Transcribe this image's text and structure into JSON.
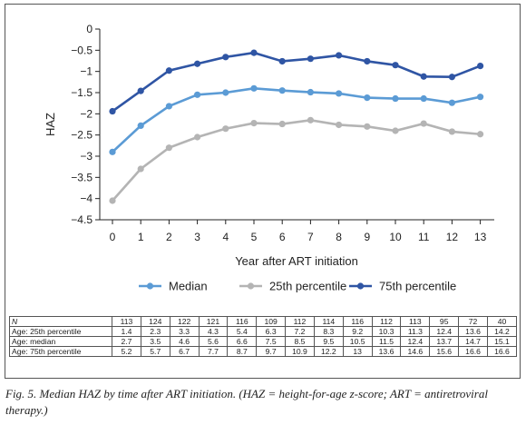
{
  "chart_data": {
    "type": "line",
    "title": "",
    "xlabel": "Year after ART initiation",
    "ylabel": "HAZ",
    "x": [
      0,
      1,
      2,
      3,
      4,
      5,
      6,
      7,
      8,
      9,
      10,
      11,
      12,
      13
    ],
    "x_ticks": [
      "0",
      "1",
      "2",
      "3",
      "4",
      "5",
      "6",
      "7",
      "8",
      "9",
      "10",
      "11",
      "12",
      "13"
    ],
    "ylim": [
      -4.5,
      0
    ],
    "y_ticks": [
      "0",
      "−0.5",
      "−1",
      "−1.5",
      "−2",
      "−2.5",
      "−3",
      "−3.5",
      "−4",
      "−4.5"
    ],
    "grid": false,
    "legend_position": "bottom",
    "series": [
      {
        "name": "Median",
        "color": "#5b9bd5",
        "values": [
          -2.9,
          -2.28,
          -1.82,
          -1.55,
          -1.5,
          -1.4,
          -1.45,
          -1.49,
          -1.52,
          -1.62,
          -1.64,
          -1.64,
          -1.74,
          -1.6
        ]
      },
      {
        "name": "25th percentile",
        "color": "#b4b4b4",
        "values": [
          -4.05,
          -3.3,
          -2.8,
          -2.55,
          -2.35,
          -2.22,
          -2.24,
          -2.15,
          -2.26,
          -2.3,
          -2.4,
          -2.23,
          -2.42,
          -2.48
        ]
      },
      {
        "name": "75th percentile",
        "color": "#2f55a4",
        "values": [
          -1.94,
          -1.46,
          -0.98,
          -0.82,
          -0.66,
          -0.56,
          -0.76,
          -0.7,
          -0.62,
          -0.76,
          -0.85,
          -1.12,
          -1.13,
          -0.87
        ]
      }
    ]
  },
  "table": {
    "rows": [
      {
        "label": "N",
        "label_italic": true,
        "values": [
          "113",
          "124",
          "122",
          "121",
          "116",
          "109",
          "112",
          "114",
          "116",
          "112",
          "113",
          "95",
          "72",
          "40"
        ]
      },
      {
        "label": "Age: 25th percentile",
        "values": [
          "1.4",
          "2.3",
          "3.3",
          "4.3",
          "5.4",
          "6.3",
          "7.2",
          "8.3",
          "9.2",
          "10.3",
          "11.3",
          "12.4",
          "13.6",
          "14.2"
        ]
      },
      {
        "label": "Age: median",
        "values": [
          "2.7",
          "3.5",
          "4.6",
          "5.6",
          "6.6",
          "7.5",
          "8.5",
          "9.5",
          "10.5",
          "11.5",
          "12.4",
          "13.7",
          "14.7",
          "15.1"
        ]
      },
      {
        "label": "Age: 75th percentile",
        "values": [
          "5.2",
          "5.7",
          "6.7",
          "7.7",
          "8.7",
          "9.7",
          "10.9",
          "12.2",
          "13",
          "13.6",
          "14.6",
          "15.6",
          "16.6",
          "16.6"
        ]
      }
    ]
  },
  "caption": "Fig. 5. Median HAZ by time after ART initiation. (HAZ = height-for-age z-score; ART = antiretroviral therapy.)"
}
